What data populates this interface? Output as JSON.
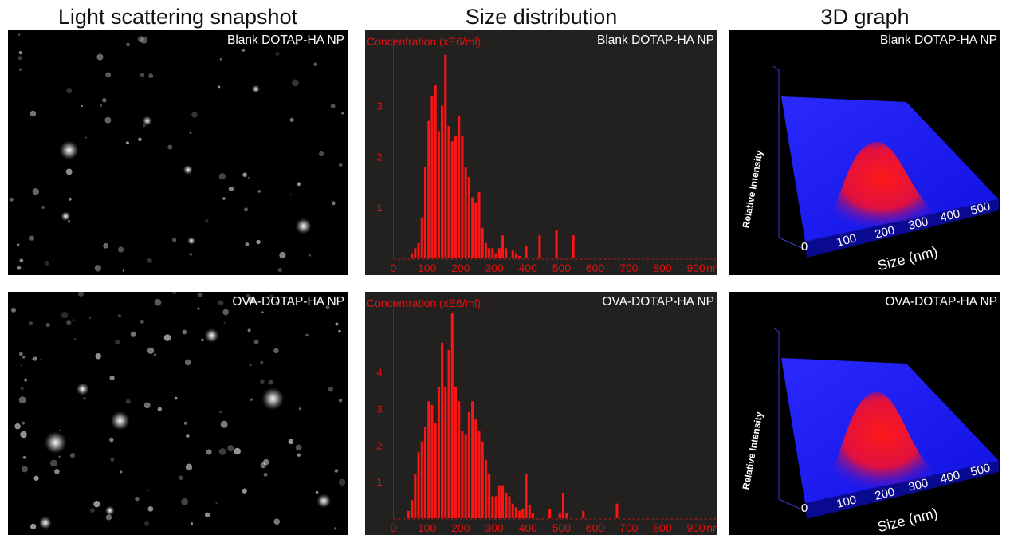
{
  "columns": {
    "snapshot_title": "Light scattering snapshot",
    "distribution_title": "Size distribution",
    "graph3d_title": "3D graph"
  },
  "samples": [
    {
      "name": "Blank DOTAP-HA NP"
    },
    {
      "name": "OVA-DOTAP-HA NP"
    }
  ],
  "colors": {
    "bar": "#ff1414",
    "axis": "#c81818",
    "plot_background": "#232120",
    "surface_low": "#1a1aff",
    "surface_high": "#ff1a1a"
  },
  "chart_data": [
    {
      "type": "bar",
      "title": "Blank DOTAP-HA NP",
      "ylabel": "Concentration (xE6/ml)",
      "xlabel": "",
      "x_unit": "nm",
      "x_ticks": [
        0,
        100,
        200,
        300,
        400,
        500,
        600,
        700,
        800,
        900
      ],
      "y_ticks": [
        1,
        2,
        3
      ],
      "xlim": [
        -20,
        940
      ],
      "ylim": [
        0,
        4.2
      ],
      "x": [
        55,
        65,
        75,
        85,
        95,
        105,
        115,
        125,
        135,
        145,
        155,
        165,
        175,
        185,
        195,
        205,
        215,
        225,
        235,
        245,
        255,
        265,
        275,
        285,
        295,
        305,
        315,
        325,
        335,
        345,
        355,
        365,
        375,
        385,
        395,
        405,
        415,
        425,
        435,
        445,
        455,
        465,
        475,
        485,
        495,
        505,
        515,
        525,
        535,
        545,
        555,
        565,
        575
      ],
      "values": [
        0.1,
        0.2,
        0.3,
        0.8,
        1.8,
        2.7,
        3.2,
        3.4,
        2.5,
        3.0,
        4.0,
        2.6,
        2.3,
        2.4,
        2.8,
        2.4,
        1.8,
        1.6,
        1.2,
        1.1,
        1.3,
        0.6,
        0.3,
        0.2,
        0.2,
        0.1,
        0.2,
        0.45,
        0.2,
        0,
        0.15,
        0.1,
        0.05,
        0,
        0.25,
        0,
        0,
        0,
        0.45,
        0,
        0,
        0,
        0,
        0.55,
        0,
        0,
        0,
        0,
        0.45,
        0,
        0,
        0,
        0
      ]
    },
    {
      "type": "bar",
      "title": "OVA-DOTAP-HA NP",
      "ylabel": "Concentration (xE6/ml)",
      "xlabel": "",
      "x_unit": "nm",
      "x_ticks": [
        0,
        100,
        200,
        300,
        400,
        500,
        600,
        700,
        800,
        900
      ],
      "y_ticks": [
        1,
        2,
        3,
        4
      ],
      "xlim": [
        -20,
        940
      ],
      "ylim": [
        0,
        5.8
      ],
      "x": [
        45,
        55,
        65,
        75,
        85,
        95,
        105,
        115,
        125,
        135,
        145,
        155,
        165,
        175,
        185,
        195,
        205,
        215,
        225,
        235,
        245,
        255,
        265,
        275,
        285,
        295,
        305,
        315,
        325,
        335,
        345,
        355,
        365,
        375,
        385,
        395,
        405,
        415,
        425,
        435,
        445,
        455,
        465,
        475,
        485,
        495,
        505,
        515,
        525,
        535,
        545,
        555,
        565,
        575,
        585,
        595,
        605,
        615,
        625,
        635,
        645,
        655,
        665,
        675
      ],
      "values": [
        0.2,
        0.5,
        1.2,
        1.8,
        2.1,
        2.5,
        3.2,
        3.1,
        2.6,
        3.6,
        4.8,
        3.6,
        4.6,
        5.6,
        3.6,
        3.2,
        2.4,
        2.3,
        2.9,
        3.2,
        2.7,
        2.4,
        2.1,
        1.6,
        1.2,
        0.6,
        0.6,
        0.9,
        0.9,
        0.7,
        0.6,
        0.4,
        0.3,
        0.2,
        0.25,
        1.2,
        0.35,
        0.15,
        0,
        0,
        0,
        0,
        0.25,
        0,
        0,
        0.15,
        0.7,
        0.15,
        0,
        0,
        0,
        0,
        0.2,
        0,
        0,
        0,
        0,
        0,
        0,
        0,
        0,
        0,
        0.4,
        0
      ]
    },
    {
      "type": "surface",
      "title": "Blank DOTAP-HA NP",
      "xlabel": "Size (nm)",
      "zlabel": "Relative Intensity",
      "x_ticks": [
        0,
        100,
        200,
        300,
        400,
        500
      ]
    },
    {
      "type": "surface",
      "title": "OVA-DOTAP-HA NP",
      "xlabel": "Size (nm)",
      "zlabel": "Relative Intensity",
      "x_ticks": [
        0,
        100,
        200,
        300,
        400,
        500
      ]
    }
  ]
}
